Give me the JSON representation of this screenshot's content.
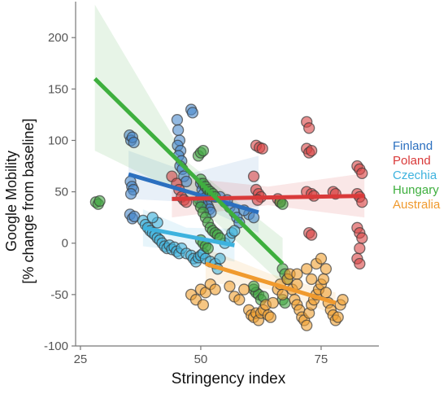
{
  "chart_data": {
    "type": "scatter",
    "xlabel": "Stringency index",
    "ylabel_line1": "Google Mobility",
    "ylabel_line2": "[% change from baseline]",
    "xlim": [
      24,
      87
    ],
    "ylim": [
      -100,
      235
    ],
    "xticks": [
      25,
      50,
      75
    ],
    "yticks": [
      -100,
      -50,
      0,
      50,
      100,
      150,
      200
    ],
    "grid": false,
    "legend_position": "right",
    "series": [
      {
        "name": "Finland",
        "color": "#2b6fbf",
        "fill": "#4a88cc",
        "trend": {
          "x": [
            35,
            62
          ],
          "y": [
            67,
            30
          ]
        },
        "band": {
          "x": [
            35,
            48,
            62
          ],
          "lower": [
            43,
            40,
            10
          ],
          "upper": [
            90,
            68,
            85
          ]
        },
        "points": [
          [
            35.2,
            105
          ],
          [
            35.5,
            100
          ],
          [
            35.8,
            103
          ],
          [
            36.1,
            98
          ],
          [
            35.4,
            60
          ],
          [
            35.7,
            55
          ],
          [
            36,
            52
          ],
          [
            35.5,
            48
          ],
          [
            35.3,
            28
          ],
          [
            35.8,
            24
          ],
          [
            36.2,
            26
          ],
          [
            45.1,
            120
          ],
          [
            45.3,
            110
          ],
          [
            45.6,
            100
          ],
          [
            45.2,
            95
          ],
          [
            45.8,
            90
          ],
          [
            45.4,
            85
          ],
          [
            46,
            80
          ],
          [
            45.7,
            75
          ],
          [
            46.2,
            72
          ],
          [
            48,
            130
          ],
          [
            48.3,
            127
          ],
          [
            46.5,
            65
          ],
          [
            47,
            60
          ],
          [
            50,
            58
          ],
          [
            50.3,
            52
          ],
          [
            50.6,
            48
          ],
          [
            50.9,
            44
          ],
          [
            51.2,
            40
          ],
          [
            51.5,
            36
          ],
          [
            51.8,
            33
          ],
          [
            52.1,
            30
          ],
          [
            49.8,
            42
          ],
          [
            50.2,
            38
          ],
          [
            54,
            45
          ],
          [
            55,
            40
          ],
          [
            56,
            35
          ],
          [
            57,
            30
          ],
          [
            57.5,
            25
          ],
          [
            58,
            20
          ],
          [
            60,
            28
          ],
          [
            61,
            25
          ],
          [
            59,
            32
          ],
          [
            55.5,
            42
          ]
        ]
      },
      {
        "name": "Poland",
        "color": "#d93a3a",
        "fill": "#d94545",
        "trend": {
          "x": [
            44,
            84
          ],
          "y": [
            43,
            46
          ]
        },
        "band": {
          "x": [
            44,
            64,
            84
          ],
          "lower": [
            25,
            37,
            25
          ],
          "upper": [
            65,
            55,
            68
          ]
        },
        "points": [
          [
            44,
            65
          ],
          [
            45,
            58
          ],
          [
            45.5,
            52
          ],
          [
            46,
            45
          ],
          [
            46.5,
            42
          ],
          [
            47,
            40
          ],
          [
            61.5,
            95
          ],
          [
            62.2,
            93
          ],
          [
            62.8,
            92
          ],
          [
            61,
            65
          ],
          [
            61.5,
            52
          ],
          [
            62,
            48
          ],
          [
            62.5,
            45
          ],
          [
            61.8,
            42
          ],
          [
            66,
            43
          ],
          [
            66.5,
            40
          ],
          [
            72,
            92
          ],
          [
            72.5,
            88
          ],
          [
            73,
            90
          ],
          [
            72,
            118
          ],
          [
            72.5,
            112
          ],
          [
            72,
            50
          ],
          [
            73,
            48
          ],
          [
            73.5,
            46
          ],
          [
            77.5,
            50
          ],
          [
            78,
            48
          ],
          [
            82.5,
            75
          ],
          [
            83,
            72
          ],
          [
            83.5,
            68
          ],
          [
            82.5,
            48
          ],
          [
            83,
            45
          ],
          [
            83.5,
            40
          ],
          [
            82.5,
            15
          ],
          [
            83,
            10
          ],
          [
            83.5,
            5
          ],
          [
            83,
            -5
          ],
          [
            82.5,
            -15
          ],
          [
            83,
            -20
          ],
          [
            72.5,
            10
          ],
          [
            73,
            8
          ]
        ]
      },
      {
        "name": "Czechia",
        "color": "#3db2de",
        "fill": "#43b4dd",
        "trend": {
          "x": [
            38,
            57
          ],
          "y": [
            15,
            -2
          ]
        },
        "band": {
          "x": [
            38,
            47,
            57
          ],
          "lower": [
            -3,
            -8,
            -18
          ],
          "upper": [
            33,
            15,
            14
          ]
        },
        "points": [
          [
            38,
            22
          ],
          [
            38.5,
            18
          ],
          [
            39,
            15
          ],
          [
            39.5,
            12
          ],
          [
            40,
            10
          ],
          [
            40.5,
            8
          ],
          [
            41,
            5
          ],
          [
            41.5,
            3
          ],
          [
            42,
            0
          ],
          [
            42.5,
            -3
          ],
          [
            43,
            -5
          ],
          [
            43.5,
            -2
          ],
          [
            44,
            -6
          ],
          [
            44.5,
            -4
          ],
          [
            45,
            -8
          ],
          [
            45.5,
            -10
          ],
          [
            46,
            -5
          ],
          [
            47,
            -10
          ],
          [
            48,
            -12
          ],
          [
            48.5,
            -15
          ],
          [
            49,
            -18
          ],
          [
            49.5,
            -14
          ],
          [
            50,
            -12
          ],
          [
            50.5,
            -10
          ],
          [
            51,
            -15
          ],
          [
            52,
            -18
          ],
          [
            53,
            -20
          ],
          [
            53.5,
            -25
          ],
          [
            54,
            -15
          ],
          [
            55,
            0
          ],
          [
            56,
            5
          ],
          [
            56.5,
            10
          ],
          [
            57,
            12
          ],
          [
            41,
            20
          ],
          [
            40,
            25
          ]
        ]
      },
      {
        "name": "Hungary",
        "color": "#3eaf3e",
        "fill": "#43a743",
        "trend": {
          "x": [
            28,
            67
          ],
          "y": [
            160,
            -20
          ]
        },
        "band": {
          "x": [
            28,
            47.5,
            67
          ],
          "lower": [
            90,
            45,
            -40
          ],
          "upper": [
            232,
            78,
            5
          ]
        },
        "points": [
          [
            28.2,
            40
          ],
          [
            28.7,
            38
          ],
          [
            29,
            41
          ],
          [
            49.5,
            85
          ],
          [
            50,
            88
          ],
          [
            50.5,
            90
          ],
          [
            50,
            62
          ],
          [
            50.5,
            58
          ],
          [
            51,
            55
          ],
          [
            51.5,
            52
          ],
          [
            52,
            50
          ],
          [
            52.5,
            48
          ],
          [
            53,
            45
          ],
          [
            49.5,
            40
          ],
          [
            50,
            35
          ],
          [
            50.5,
            30
          ],
          [
            51,
            25
          ],
          [
            51.5,
            20
          ],
          [
            52,
            15
          ],
          [
            52.5,
            12
          ],
          [
            53,
            10
          ],
          [
            53.5,
            8
          ],
          [
            54,
            5
          ],
          [
            50,
            3
          ],
          [
            50.5,
            0
          ],
          [
            51,
            -3
          ],
          [
            51.5,
            -5
          ],
          [
            61,
            -45
          ],
          [
            61.5,
            -48
          ],
          [
            62,
            -50
          ],
          [
            62.5,
            -55
          ],
          [
            63,
            -52
          ],
          [
            61,
            -42
          ],
          [
            66.5,
            40
          ],
          [
            67,
            38
          ],
          [
            67,
            -25
          ],
          [
            67.5,
            -30
          ],
          [
            68,
            -35
          ],
          [
            67,
            -55
          ],
          [
            67.5,
            -58
          ]
        ]
      },
      {
        "name": "Australia",
        "color": "#f09a2e",
        "fill": "#f0a030",
        "trend": {
          "x": [
            51,
            78
          ],
          "y": [
            -20,
            -58
          ]
        },
        "band": {
          "x": [
            51,
            64.5,
            78
          ],
          "lower": [
            -38,
            -45,
            -70
          ],
          "upper": [
            -5,
            -30,
            -48
          ]
        },
        "points": [
          [
            48,
            -50
          ],
          [
            49,
            -55
          ],
          [
            50,
            -45
          ],
          [
            50.5,
            -60
          ],
          [
            51,
            -48
          ],
          [
            52,
            -40
          ],
          [
            53,
            -45
          ],
          [
            56,
            -42
          ],
          [
            57,
            -52
          ],
          [
            58,
            -55
          ],
          [
            59,
            -45
          ],
          [
            60,
            -65
          ],
          [
            60.5,
            -70
          ],
          [
            61,
            -72
          ],
          [
            61.5,
            -68
          ],
          [
            62,
            -75
          ],
          [
            62.5,
            -68
          ],
          [
            63,
            -65
          ],
          [
            63.5,
            -60
          ],
          [
            64,
            -70
          ],
          [
            64.5,
            -72
          ],
          [
            65,
            -58
          ],
          [
            66,
            -45
          ],
          [
            66.5,
            -40
          ],
          [
            67,
            -50
          ],
          [
            68,
            -35
          ],
          [
            68.5,
            -30
          ],
          [
            69,
            -45
          ],
          [
            69.5,
            -55
          ],
          [
            70,
            -60
          ],
          [
            70.5,
            -65
          ],
          [
            71,
            -72
          ],
          [
            71.5,
            -75
          ],
          [
            72,
            -80
          ],
          [
            72.5,
            -68
          ],
          [
            73,
            -60
          ],
          [
            73.5,
            -55
          ],
          [
            74,
            -50
          ],
          [
            74.5,
            -45
          ],
          [
            75,
            -40
          ],
          [
            75.5,
            -35
          ],
          [
            76,
            -48
          ],
          [
            76.5,
            -58
          ],
          [
            77,
            -65
          ],
          [
            77.5,
            -70
          ],
          [
            78,
            -75
          ],
          [
            78.5,
            -72
          ],
          [
            79,
            -60
          ],
          [
            79.5,
            -55
          ],
          [
            70,
            -30
          ],
          [
            72,
            -25
          ],
          [
            74,
            -20
          ],
          [
            75,
            -15
          ],
          [
            76,
            -25
          ],
          [
            73,
            -35
          ],
          [
            70,
            -40
          ]
        ]
      }
    ]
  }
}
